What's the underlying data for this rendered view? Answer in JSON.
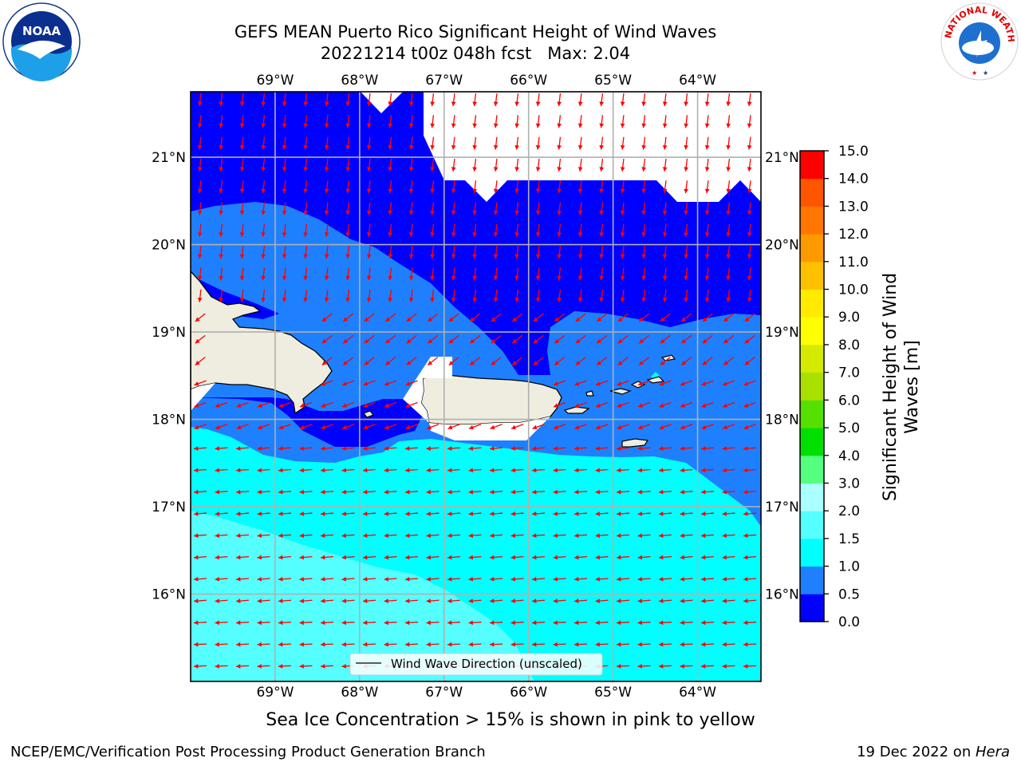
{
  "title": {
    "line1": "GEFS MEAN Puerto Rico Significant Height of Wind Waves",
    "line2": "20221214 t00z 048h fcst   Max: 2.04"
  },
  "map": {
    "lon_labels": [
      "69°W",
      "68°W",
      "67°W",
      "66°W",
      "65°W",
      "64°W"
    ],
    "lat_labels": [
      "21°N",
      "20°N",
      "19°N",
      "18°N",
      "17°N",
      "16°N"
    ],
    "lon_extent": [
      -70.0,
      -63.25
    ],
    "lat_extent": [
      15.0,
      21.75
    ],
    "legend_label": "Wind Wave Direction (unscaled)",
    "legend_placement": "bottom-center",
    "arrow_color": "#ff0000",
    "land_color": "#efeddf",
    "grid": true
  },
  "colorbar": {
    "label": "Significant Height of Wind Waves [m]",
    "label_line1": "Significant Height of Wind",
    "label_line2": "Waves [m]",
    "ticks": [
      "0.0",
      "0.5",
      "1.0",
      "1.5",
      "2.0",
      "3.0",
      "4.0",
      "5.0",
      "6.0",
      "7.0",
      "8.0",
      "9.0",
      "10.0",
      "11.0",
      "12.0",
      "13.0",
      "14.0",
      "15.0"
    ],
    "colors": [
      "#0000ff",
      "#1e80ff",
      "#00ffff",
      "#55ffff",
      "#aaffff",
      "#55ff80",
      "#00e000",
      "#55e000",
      "#aae000",
      "#d4ea00",
      "#ffff00",
      "#ffea00",
      "#ffc000",
      "#ff9900",
      "#ff7700",
      "#ff5500",
      "#ff0000"
    ]
  },
  "sea_ice_note": "Sea Ice Concentration > 15% is shown in pink to yellow",
  "footer": {
    "left": "NCEP/EMC/Verification Post Processing Product Generation Branch",
    "right_date": "19 Dec 2022 on ",
    "right_host": "Hera"
  },
  "logos": {
    "left": "NOAA",
    "right": "NATIONAL WEATHER SERVICE"
  }
}
